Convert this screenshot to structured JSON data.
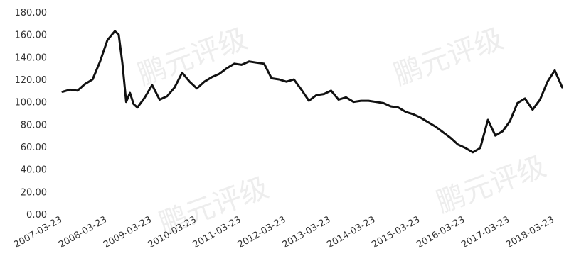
{
  "chart_data": {
    "type": "line",
    "title": "",
    "xlabel": "",
    "ylabel": "",
    "ylim": [
      0,
      180
    ],
    "y_ticks": [
      "0.00",
      "20.00",
      "40.00",
      "60.00",
      "80.00",
      "100.00",
      "120.00",
      "140.00",
      "160.00",
      "180.00"
    ],
    "x_ticks": [
      "2007-03-23",
      "2008-03-23",
      "2009-03-23",
      "2010-03-23",
      "2011-03-23",
      "2012-03-23",
      "2013-03-23",
      "2014-03-23",
      "2015-03-23",
      "2016-03-23",
      "2017-03-23",
      "2018-03-23"
    ],
    "grid": false,
    "line_color": "#111111",
    "series": [
      {
        "x": [
          "2007-03-23",
          "2007-05-23",
          "2007-07-23",
          "2007-09-23",
          "2007-11-23",
          "2008-01-23",
          "2008-03-23",
          "2008-05-23",
          "2008-06-23",
          "2008-07-23",
          "2008-08-23",
          "2008-09-23",
          "2008-10-23",
          "2008-11-23",
          "2009-01-23",
          "2009-03-23",
          "2009-05-23",
          "2009-07-23",
          "2009-09-23",
          "2009-11-23",
          "2010-01-23",
          "2010-03-23",
          "2010-05-23",
          "2010-07-23",
          "2010-09-23",
          "2010-11-23",
          "2011-01-23",
          "2011-03-23",
          "2011-05-23",
          "2011-07-23",
          "2011-09-23",
          "2011-11-23",
          "2012-01-23",
          "2012-03-23",
          "2012-05-23",
          "2012-07-23",
          "2012-09-23",
          "2012-11-23",
          "2013-01-23",
          "2013-03-23",
          "2013-05-23",
          "2013-07-23",
          "2013-09-23",
          "2013-11-23",
          "2014-01-23",
          "2014-03-23",
          "2014-05-23",
          "2014-07-23",
          "2014-09-23",
          "2014-11-23",
          "2015-01-23",
          "2015-03-23",
          "2015-05-23",
          "2015-07-23",
          "2015-09-23",
          "2015-11-23",
          "2016-01-23",
          "2016-03-23",
          "2016-05-23",
          "2016-07-23",
          "2016-09-23",
          "2016-11-23",
          "2017-01-23",
          "2017-03-23",
          "2017-05-23",
          "2017-07-23",
          "2017-09-23",
          "2017-11-23",
          "2018-01-23",
          "2018-03-23",
          "2018-05-23"
        ],
        "values": [
          109,
          111,
          110,
          116,
          120,
          136,
          155,
          163,
          160,
          135,
          100,
          108,
          98,
          95,
          104,
          115,
          102,
          105,
          113,
          126,
          118,
          112,
          118,
          122,
          125,
          130,
          134,
          133,
          136,
          135,
          134,
          121,
          120,
          118,
          120,
          111,
          101,
          106,
          107,
          110,
          102,
          104,
          100,
          101,
          101,
          100,
          99,
          96,
          95,
          91,
          89,
          86,
          82,
          78,
          73,
          68,
          62,
          59,
          55,
          59,
          84,
          70,
          74,
          83,
          99,
          103,
          93,
          102,
          118,
          128,
          113
        ]
      }
    ]
  },
  "watermark": {
    "text": "鹏元评级"
  }
}
